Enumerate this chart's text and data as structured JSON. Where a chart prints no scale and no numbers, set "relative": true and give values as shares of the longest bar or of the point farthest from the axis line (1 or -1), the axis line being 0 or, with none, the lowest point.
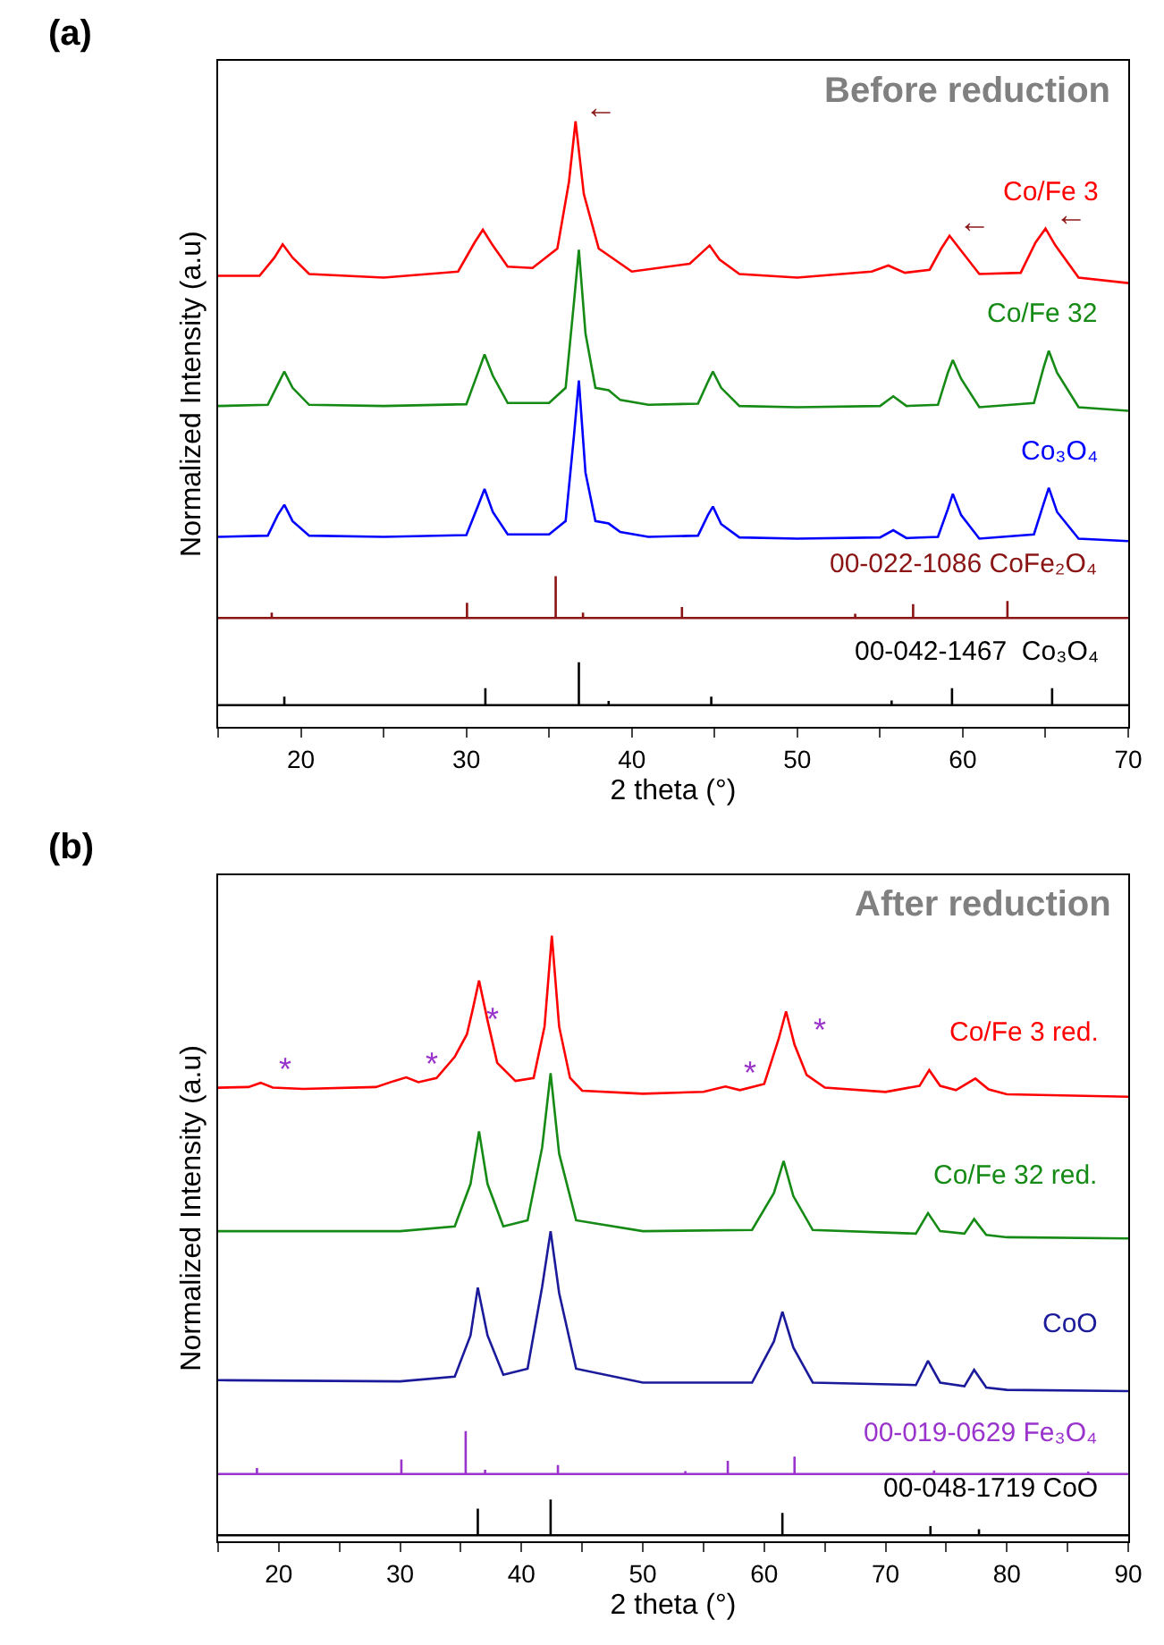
{
  "chart_data": [
    {
      "type": "line",
      "title": "(a)",
      "subtitle": "Before reduction",
      "xlabel": "2 theta (°)",
      "ylabel": "Normalized Intensity (a.u)",
      "relative": true,
      "tick_labels": "x",
      "xlim": [
        15,
        70
      ],
      "xticks": [
        {
          "value": 15,
          "label": null
        },
        20,
        {
          "value": 25,
          "label": null
        },
        30,
        {
          "value": 35,
          "label": null
        },
        40,
        {
          "value": 45,
          "label": null
        },
        50,
        {
          "value": 55,
          "label": null
        },
        60,
        {
          "value": 65,
          "label": null
        },
        70
      ],
      "series": [
        {
          "name": "Co/Fe 3",
          "color": "#ff0000",
          "x": [
            15,
            17.5,
            18.4,
            18.9,
            19.5,
            20.5,
            25,
            29.5,
            30.5,
            31,
            31.6,
            32.5,
            34,
            35.5,
            36.2,
            36.6,
            37.1,
            38,
            40,
            43.5,
            44.3,
            44.7,
            45.3,
            46.5,
            50,
            54.5,
            55.5,
            56.5,
            58,
            58.7,
            59.2,
            59.8,
            61,
            63.5,
            64.4,
            65,
            65.6,
            67,
            70
          ],
          "values": [
            0.745,
            0.745,
            0.775,
            0.797,
            0.775,
            0.748,
            0.742,
            0.752,
            0.8,
            0.821,
            0.795,
            0.76,
            0.758,
            0.79,
            0.9,
            1.0,
            0.88,
            0.79,
            0.752,
            0.765,
            0.785,
            0.795,
            0.772,
            0.748,
            0.742,
            0.752,
            0.762,
            0.75,
            0.755,
            0.79,
            0.811,
            0.79,
            0.748,
            0.75,
            0.8,
            0.823,
            0.795,
            0.742,
            0.733
          ]
        },
        {
          "name": "Co/Fe 32",
          "color": "#158a15",
          "x": [
            15,
            18,
            18.6,
            19,
            19.5,
            20.5,
            25,
            30,
            30.7,
            31.1,
            31.6,
            32.5,
            35,
            36,
            36.5,
            36.8,
            37.2,
            37.8,
            38.6,
            39.3,
            41,
            44,
            44.6,
            44.9,
            45.4,
            46.5,
            50,
            55,
            55.8,
            56.6,
            58.5,
            59.1,
            59.4,
            59.9,
            61,
            64.3,
            64.9,
            65.2,
            65.7,
            67,
            70
          ],
          "values": [
            0.53,
            0.532,
            0.565,
            0.587,
            0.56,
            0.532,
            0.53,
            0.533,
            0.585,
            0.615,
            0.58,
            0.535,
            0.535,
            0.56,
            0.7,
            0.788,
            0.65,
            0.56,
            0.556,
            0.54,
            0.532,
            0.534,
            0.57,
            0.587,
            0.56,
            0.53,
            0.528,
            0.53,
            0.546,
            0.53,
            0.532,
            0.585,
            0.606,
            0.575,
            0.528,
            0.535,
            0.595,
            0.621,
            0.585,
            0.528,
            0.522
          ]
        },
        {
          "name": "Co₃O₄",
          "color": "#0000ff",
          "x": [
            15,
            18,
            18.6,
            19,
            19.5,
            20.5,
            25,
            30,
            30.7,
            31.1,
            31.6,
            32.5,
            35,
            36,
            36.5,
            36.8,
            37.2,
            37.8,
            38.6,
            39.3,
            41,
            44,
            44.6,
            44.9,
            45.4,
            46.5,
            50,
            55,
            55.8,
            56.6,
            58.5,
            59.1,
            59.4,
            59.9,
            61,
            64.3,
            64.9,
            65.2,
            65.7,
            67,
            70
          ],
          "values": [
            0.314,
            0.316,
            0.35,
            0.367,
            0.34,
            0.316,
            0.314,
            0.317,
            0.365,
            0.393,
            0.355,
            0.318,
            0.318,
            0.34,
            0.48,
            0.572,
            0.42,
            0.34,
            0.336,
            0.322,
            0.314,
            0.316,
            0.35,
            0.364,
            0.335,
            0.313,
            0.311,
            0.313,
            0.325,
            0.312,
            0.314,
            0.36,
            0.385,
            0.35,
            0.311,
            0.318,
            0.37,
            0.395,
            0.355,
            0.311,
            0.307
          ]
        },
        {
          "name": "00-022-1086 CoFe₂O₄",
          "color": "#8b1414",
          "x": [
            15,
            18.24,
            18.24,
            18.24,
            30.04,
            30.04,
            30.04,
            35.4,
            35.4,
            35.4,
            37.05,
            37.05,
            37.05,
            43.03,
            43.03,
            43.03,
            53.5,
            53.5,
            53.5,
            57.0,
            57.0,
            57.0,
            62.7,
            62.7,
            62.7,
            70
          ],
          "values": [
            0.18,
            0.18,
            0.189,
            0.18,
            0.18,
            0.205,
            0.18,
            0.18,
            0.249,
            0.18,
            0.18,
            0.189,
            0.18,
            0.18,
            0.198,
            0.18,
            0.18,
            0.187,
            0.18,
            0.18,
            0.203,
            0.18,
            0.18,
            0.208,
            0.18,
            0.18
          ]
        },
        {
          "name": "00-042-1467  Co₃O₄",
          "color": "#000000",
          "x": [
            15,
            19.0,
            19.0,
            19.0,
            31.15,
            31.15,
            31.15,
            36.8,
            36.8,
            36.8,
            38.6,
            38.6,
            38.6,
            44.8,
            44.8,
            44.8,
            55.7,
            55.7,
            55.7,
            59.35,
            59.35,
            59.35,
            65.4,
            65.4,
            65.4,
            70
          ],
          "values": [
            0.036,
            0.036,
            0.05,
            0.036,
            0.036,
            0.064,
            0.036,
            0.036,
            0.107,
            0.036,
            0.036,
            0.043,
            0.036,
            0.036,
            0.05,
            0.036,
            0.036,
            0.044,
            0.036,
            0.036,
            0.064,
            0.036,
            0.036,
            0.064,
            0.036,
            0.036
          ]
        }
      ],
      "annotations": [
        {
          "text": "←",
          "x": 36.6,
          "y": 1.0
        },
        {
          "text": "←",
          "x": 59.2,
          "y": 0.811
        },
        {
          "text": "←",
          "x": 65,
          "y": 0.823
        }
      ]
    },
    {
      "type": "line",
      "title": "(b)",
      "subtitle": "After reduction",
      "xlabel": "2 theta (°)",
      "ylabel": "Normalized Intensity (a.u)",
      "relative": true,
      "tick_labels": "x",
      "xlim": [
        15,
        90
      ],
      "xticks": [
        {
          "value": 15,
          "label": null
        },
        20,
        {
          "value": 25,
          "label": null
        },
        30,
        {
          "value": 35,
          "label": null
        },
        40,
        {
          "value": 45,
          "label": null
        },
        50,
        {
          "value": 55,
          "label": null
        },
        60,
        {
          "value": 65,
          "label": null
        },
        70,
        {
          "value": 75,
          "label": null
        },
        80,
        {
          "value": 85,
          "label": null
        },
        90
      ],
      "series": [
        {
          "name": "Co/Fe 3 red.",
          "color": "#ff0000",
          "x": [
            15,
            17.5,
            18.5,
            19.5,
            22,
            28,
            29.5,
            30.5,
            31.5,
            33,
            34.5,
            35.5,
            36,
            36.5,
            37.2,
            38,
            39.5,
            41,
            41.9,
            42.5,
            43.1,
            44,
            45,
            50,
            55,
            56.8,
            58,
            60,
            61.2,
            61.8,
            62.5,
            63.5,
            65,
            70,
            72.8,
            73.6,
            74.5,
            75.8,
            77.4,
            78.5,
            80,
            90
          ],
          "values": [
            0.749,
            0.75,
            0.757,
            0.749,
            0.747,
            0.75,
            0.76,
            0.766,
            0.758,
            0.765,
            0.8,
            0.837,
            0.88,
            0.926,
            0.86,
            0.79,
            0.76,
            0.765,
            0.85,
            1.0,
            0.85,
            0.765,
            0.744,
            0.739,
            0.742,
            0.751,
            0.745,
            0.755,
            0.83,
            0.875,
            0.82,
            0.77,
            0.749,
            0.742,
            0.752,
            0.778,
            0.752,
            0.745,
            0.764,
            0.746,
            0.738,
            0.734
          ]
        },
        {
          "name": "Co/Fe 32 red.",
          "color": "#158a15",
          "x": [
            15,
            30,
            34.5,
            35.8,
            36.5,
            37.2,
            38.5,
            40.5,
            41.7,
            42.4,
            43.1,
            44.5,
            50,
            59,
            60.8,
            61.6,
            62.4,
            64,
            72.5,
            73.5,
            74.5,
            76.5,
            77.3,
            78.3,
            80,
            90
          ],
          "values": [
            0.512,
            0.512,
            0.52,
            0.59,
            0.677,
            0.59,
            0.52,
            0.53,
            0.65,
            0.773,
            0.64,
            0.53,
            0.512,
            0.514,
            0.575,
            0.628,
            0.57,
            0.514,
            0.508,
            0.542,
            0.512,
            0.508,
            0.532,
            0.506,
            0.502,
            0.5
          ]
        },
        {
          "name": "CoO",
          "color": "#1a1a9a",
          "x": [
            15,
            30,
            34.5,
            35.8,
            36.4,
            37.2,
            38.5,
            40.5,
            41.7,
            42.4,
            43.1,
            44.5,
            50,
            59,
            60.8,
            61.5,
            62.4,
            64,
            72.5,
            73.5,
            74.5,
            76.5,
            77.3,
            78.3,
            80,
            90
          ],
          "values": [
            0.266,
            0.264,
            0.272,
            0.34,
            0.419,
            0.34,
            0.275,
            0.285,
            0.42,
            0.512,
            0.41,
            0.285,
            0.262,
            0.262,
            0.33,
            0.379,
            0.32,
            0.262,
            0.258,
            0.298,
            0.262,
            0.256,
            0.283,
            0.254,
            0.25,
            0.248
          ]
        },
        {
          "name": "00-019-0629 Fe₃O₄",
          "color": "#9933cc",
          "x": [
            15,
            18.2,
            18.2,
            18.2,
            30.1,
            30.1,
            30.1,
            35.4,
            35.4,
            35.4,
            37.0,
            37.0,
            37.0,
            43.0,
            43.0,
            43.0,
            53.5,
            53.5,
            53.5,
            57.0,
            57.0,
            57.0,
            62.5,
            62.5,
            62.5,
            74.0,
            74.0,
            74.0,
            86.7,
            86.7,
            86.7,
            90
          ],
          "values": [
            0.111,
            0.111,
            0.121,
            0.111,
            0.111,
            0.135,
            0.111,
            0.111,
            0.182,
            0.111,
            0.111,
            0.118,
            0.111,
            0.111,
            0.126,
            0.111,
            0.111,
            0.116,
            0.111,
            0.111,
            0.133,
            0.111,
            0.111,
            0.14,
            0.111,
            0.111,
            0.117,
            0.111,
            0.111,
            0.115,
            0.111,
            0.111
          ]
        },
        {
          "name": "00-048-1719 CoO",
          "color": "#000000",
          "x": [
            15,
            36.4,
            36.4,
            36.4,
            42.4,
            42.4,
            42.4,
            61.5,
            61.5,
            61.5,
            73.7,
            73.7,
            73.7,
            77.7,
            77.7,
            77.7,
            90
          ],
          "values": [
            0.01,
            0.01,
            0.054,
            0.01,
            0.01,
            0.069,
            0.01,
            0.01,
            0.047,
            0.01,
            0.01,
            0.025,
            0.01,
            0.01,
            0.02,
            0.01,
            0.01
          ]
        }
      ],
      "annotations": [
        {
          "text": "*",
          "x": 18.5,
          "y": 0.757
        },
        {
          "text": "*",
          "x": 30.5,
          "y": 0.766
        },
        {
          "text": "*",
          "x": 35.5,
          "y": 0.837
        },
        {
          "text": "*",
          "x": 56.8,
          "y": 0.751
        },
        {
          "text": "*",
          "x": 62.5,
          "y": 0.82
        }
      ]
    }
  ]
}
